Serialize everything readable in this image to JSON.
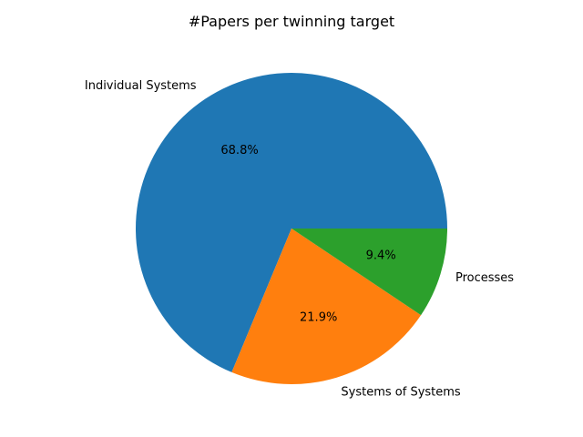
{
  "chart_data": {
    "type": "pie",
    "title": "#Papers per twinning target",
    "slices": [
      {
        "label": "Individual Systems",
        "value": 68.8,
        "pct_label": "68.8%",
        "color": "#1f77b4"
      },
      {
        "label": "Systems of Systems",
        "value": 21.9,
        "pct_label": "21.9%",
        "color": "#ff7f0e"
      },
      {
        "label": "Processes",
        "value": 9.4,
        "pct_label": "9.4%",
        "color": "#2ca02c"
      }
    ],
    "start_angle_deg": 0,
    "direction": "counterclockwise",
    "legend": "none"
  }
}
